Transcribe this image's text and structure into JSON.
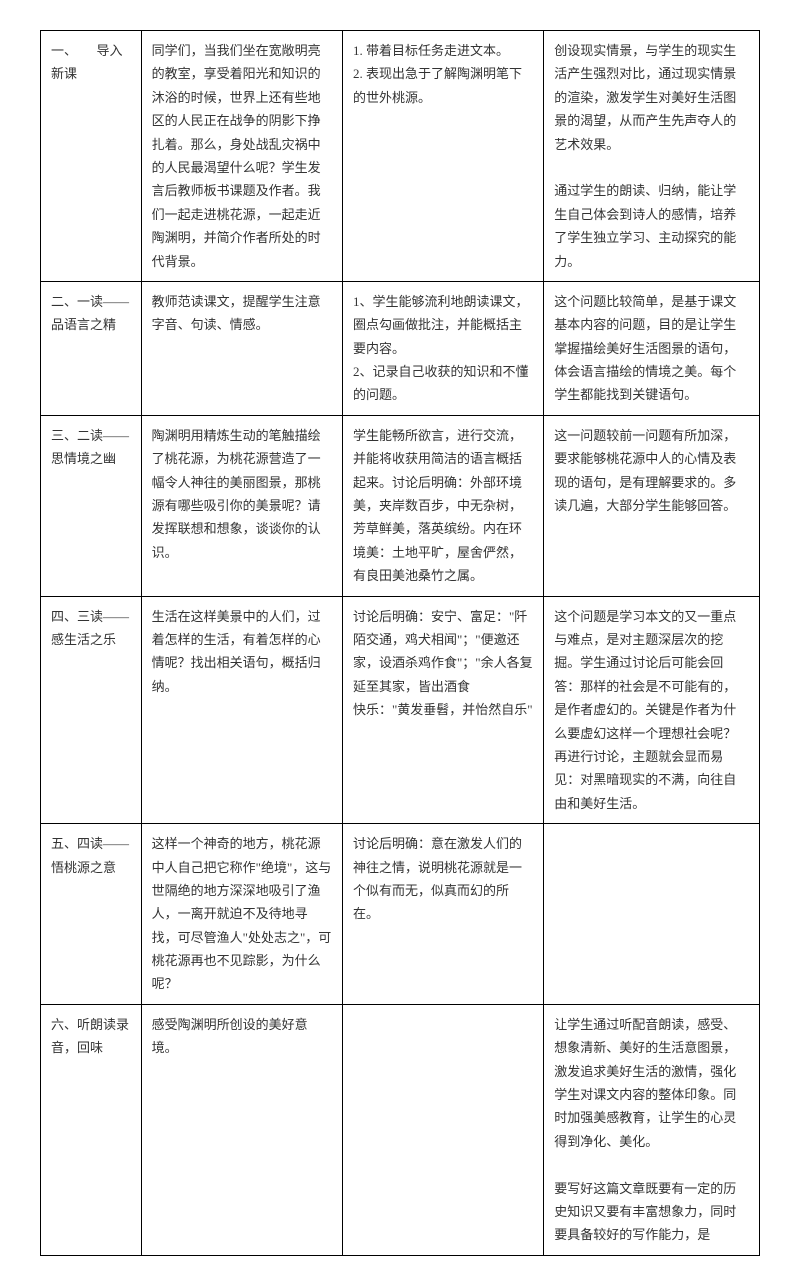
{
  "table": {
    "rows": [
      {
        "section": "一、　　导入新课",
        "teacher": "同学们，当我们坐在宽敞明亮的教室，享受着阳光和知识的沐浴的时候，世界上还有些地区的人民正在战争的阴影下挣扎着。那么，身处战乱灾祸中的人民最渴望什么呢？学生发言后教师板书课题及作者。我们一起走进桃花源，一起走近陶渊明，并简介作者所处的时代背景。",
        "student": "1. 带着目标任务走进文本。\n2. 表现出急于了解陶渊明笔下的世外桃源。",
        "intent": "创设现实情景，与学生的现实生活产生强烈对比，通过现实情景的渲染，激发学生对美好生活图景的渴望，从而产生先声夺人的艺术效果。\n\n通过学生的朗读、归纳，能让学生自己体会到诗人的感情，培养了学生独立学习、主动探究的能力。"
      },
      {
        "section": "二、一读——品语言之精",
        "teacher": "教师范读课文，提醒学生注意字音、句读、情感。",
        "student": "1、学生能够流利地朗读课文，圈点勾画做批注，并能概括主要内容。\n2、记录自己收获的知识和不懂的问题。",
        "intent": "这个问题比较简单，是基于课文基本内容的问题，目的是让学生掌握描绘美好生活图景的语句，体会语言描绘的情境之美。每个学生都能找到关键语句。"
      },
      {
        "section": "三、二读——思情境之幽",
        "teacher": "陶渊明用精炼生动的笔触描绘了桃花源，为桃花源营造了一幅令人神往的美丽图景，那桃源有哪些吸引你的美景呢？请发挥联想和想象，谈谈你的认识。",
        "student": "学生能畅所欲言，进行交流，并能将收获用简洁的语言概括起来。讨论后明确：外部环境美，夹岸数百步，中无杂树，芳草鲜美，落英缤纷。内在环境美：土地平旷，屋舍俨然，有良田美池桑竹之属。",
        "intent": "这一问题较前一问题有所加深，要求能够桃花源中人的心情及表现的语句，是有理解要求的。多读几遍，大部分学生能够回答。"
      },
      {
        "section": "四、三读——感生活之乐",
        "teacher": "生活在这样美景中的人们，过着怎样的生活，有着怎样的心情呢？找出相关语句，概括归纳。",
        "student": "讨论后明确：安宁、富足：\"阡陌交通，鸡犬相闻\"；\"便邀还家，设酒杀鸡作食\"；\"余人各复延至其家，皆出酒食\n快乐：\"黄发垂髫，并怡然自乐\"",
        "intent": "这个问题是学习本文的又一重点与难点，是对主题深层次的挖掘。学生通过讨论后可能会回答：那样的社会是不可能有的，是作者虚幻的。关键是作者为什么要虚幻这样一个理想社会呢？再进行讨论，主题就会显而易见：对黑暗现实的不满，向往自由和美好生活。"
      },
      {
        "section": "五、四读——悟桃源之意",
        "teacher": "这样一个神奇的地方，桃花源中人自己把它称作\"绝境\"，这与世隔绝的地方深深地吸引了渔人，一离开就迫不及待地寻找，可尽管渔人\"处处志之\"，可桃花源再也不见踪影，为什么呢？",
        "student": "讨论后明确：意在激发人们的神往之情，说明桃花源就是一个似有而无，似真而幻的所在。",
        "intent": ""
      },
      {
        "section": "六、听朗读录音，回味",
        "teacher": "感受陶渊明所创设的美好意境。",
        "student": "",
        "intent": "让学生通过听配音朗读，感受、想象清新、美好的生活意图景，激发追求美好生活的激情，强化学生对课文内容的整体印象。同时加强美感教育，让学生的心灵得到净化、美化。\n\n要写好这篇文章既要有一定的历史知识又要有丰富想象力，同时要具备较好的写作能力，是"
      }
    ]
  }
}
